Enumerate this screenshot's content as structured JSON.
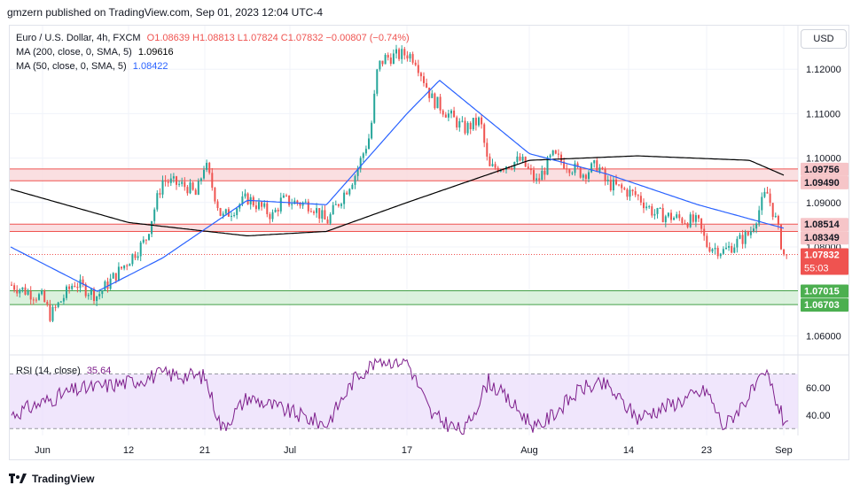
{
  "publisher_line": "gmzern published on TradingView.com, Sep 01, 2023 12:04 UTC-4",
  "currency_button": "USD",
  "footer_brand": "TradingView",
  "legend": {
    "main": {
      "label": "Euro / U.S. Dollar, 4h, FXCM",
      "values": "O1.08639  H1.08813  L1.07824  C1.07832  −0.00807 (−0.74%)"
    },
    "ma200": {
      "label": "MA (200, close, 0, SMA, 5)",
      "value": "1.09616"
    },
    "ma50": {
      "label": "MA (50, close, 0, SMA, 5)",
      "value": "1.08422"
    },
    "rsi": {
      "label": "RSI (14, close)",
      "value": "35.64"
    }
  },
  "colors": {
    "up": "#26a69a",
    "down": "#ef5350",
    "ma200": "#000000",
    "ma50": "#2962ff",
    "rsi": "#7e1f8c",
    "rsi_band": "#e9dbfb",
    "resistance_zone": "#f9d9dc",
    "support_zone": "#d5efd7",
    "grid": "#f0f3fa"
  },
  "chart_data": {
    "type": "candlestick",
    "symbol": "Euro / U.S. Dollar",
    "interval": "4h",
    "source": "FXCM",
    "x_tick_labels": [
      "Jun",
      "12",
      "21",
      "Jul",
      "17",
      "Aug",
      "14",
      "23",
      "Sep"
    ],
    "y_tick_labels": [
      "1.12000",
      "1.11000",
      "1.10000",
      "1.09000",
      "1.08000",
      "1.06000"
    ],
    "ylim": [
      1.0563,
      1.1298
    ],
    "series": [
      {
        "name": "Euro / U.S. Dollar",
        "style": "candles",
        "points": [
          {
            "date": "May 31",
            "close": 1.0715
          },
          {
            "date": "Jun 01",
            "close": 1.0685
          },
          {
            "date": "Jun 02",
            "close": 1.0645
          },
          {
            "date": "Jun 05",
            "close": 1.072
          },
          {
            "date": "Jun 08",
            "close": 1.069
          },
          {
            "date": "Jun 12",
            "close": 1.077
          },
          {
            "date": "Jun 14",
            "close": 1.0815
          },
          {
            "date": "Jun 16",
            "close": 1.095
          },
          {
            "date": "Jun 19",
            "close": 1.0935
          },
          {
            "date": "Jun 20",
            "close": 1.0915
          },
          {
            "date": "Jun 21",
            "close": 1.099
          },
          {
            "date": "Jun 23",
            "close": 1.0865
          },
          {
            "date": "Jun 26",
            "close": 1.091
          },
          {
            "date": "Jun 29",
            "close": 1.087
          },
          {
            "date": "Jun 30",
            "close": 1.0905
          },
          {
            "date": "Jul 04",
            "close": 1.0895
          },
          {
            "date": "Jul 06",
            "close": 1.0855
          },
          {
            "date": "Jul 10",
            "close": 1.0965
          },
          {
            "date": "Jul 12",
            "close": 1.1055
          },
          {
            "date": "Jul 13",
            "close": 1.1205
          },
          {
            "date": "Jul 14",
            "close": 1.1225
          },
          {
            "date": "Jul 17",
            "close": 1.1235
          },
          {
            "date": "Jul 18",
            "close": 1.1225
          },
          {
            "date": "Jul 20",
            "close": 1.1135
          },
          {
            "date": "Jul 24",
            "close": 1.1065
          },
          {
            "date": "Jul 26",
            "close": 1.1085
          },
          {
            "date": "Jul 27",
            "close": 1.0975
          },
          {
            "date": "Jul 31",
            "close": 1.0995
          },
          {
            "date": "Aug 02",
            "close": 1.0945
          },
          {
            "date": "Aug 04",
            "close": 1.1005
          },
          {
            "date": "Aug 08",
            "close": 1.0965
          },
          {
            "date": "Aug 10",
            "close": 1.0985
          },
          {
            "date": "Aug 11",
            "close": 1.0945
          },
          {
            "date": "Aug 15",
            "close": 1.0915
          },
          {
            "date": "Aug 17",
            "close": 1.0875
          },
          {
            "date": "Aug 22",
            "close": 1.0855
          },
          {
            "date": "Aug 23",
            "close": 1.0805
          },
          {
            "date": "Aug 25",
            "close": 1.079
          },
          {
            "date": "Aug 28",
            "close": 1.083
          },
          {
            "date": "Aug 30",
            "close": 1.0925
          },
          {
            "date": "Aug 31",
            "close": 1.0865
          },
          {
            "date": "Sep 01",
            "close": 1.07832
          }
        ]
      },
      {
        "name": "MA (200, close, 0, SMA, 5)",
        "style": "line",
        "points": [
          {
            "date": "May 31",
            "value": 1.093
          },
          {
            "date": "Jun 12",
            "value": 1.0855
          },
          {
            "date": "Jun 26",
            "value": 1.0825
          },
          {
            "date": "Jul 06",
            "value": 1.0835
          },
          {
            "date": "Jul 17",
            "value": 1.09
          },
          {
            "date": "Aug 01",
            "value": 1.0995
          },
          {
            "date": "Aug 15",
            "value": 1.1005
          },
          {
            "date": "Aug 28",
            "value": 1.0995
          },
          {
            "date": "Sep 01",
            "value": 1.09616
          }
        ]
      },
      {
        "name": "MA (50, close, 0, SMA, 5)",
        "style": "line",
        "points": [
          {
            "date": "May 31",
            "value": 1.08
          },
          {
            "date": "Jun 08",
            "value": 1.07
          },
          {
            "date": "Jun 16",
            "value": 1.0775
          },
          {
            "date": "Jun 26",
            "value": 1.0905
          },
          {
            "date": "Jul 06",
            "value": 1.0895
          },
          {
            "date": "Jul 17",
            "value": 1.11
          },
          {
            "date": "Jul 21",
            "value": 1.1175
          },
          {
            "date": "Aug 01",
            "value": 1.101
          },
          {
            "date": "Aug 11",
            "value": 1.0965
          },
          {
            "date": "Aug 22",
            "value": 1.0895
          },
          {
            "date": "Sep 01",
            "value": 1.08422
          }
        ]
      }
    ],
    "zones": [
      {
        "kind": "resistance",
        "from": 1.0949,
        "to": 1.09756
      },
      {
        "kind": "resistance",
        "from": 1.08349,
        "to": 1.08514
      },
      {
        "kind": "support",
        "from": 1.06703,
        "to": 1.07015
      }
    ],
    "price_labels": [
      {
        "value": 1.09756,
        "text": "1.09756"
      },
      {
        "value": 1.0949,
        "text": "1.09490"
      },
      {
        "value": 1.08514,
        "text": "1.08514"
      },
      {
        "value": 1.08349,
        "text": "1.08349"
      },
      {
        "value": 1.07832,
        "text": "1.07832",
        "sub": "55:03"
      },
      {
        "value": 1.07015,
        "text": "1.07015",
        "kind": "support"
      },
      {
        "value": 1.06703,
        "text": "1.06703",
        "kind": "support"
      }
    ],
    "last_price_line": 1.07832,
    "rsi": {
      "name": "RSI (14, close)",
      "y_tick_labels": [
        "60.00",
        "40.00"
      ],
      "ylim": [
        25,
        82
      ],
      "band": [
        30,
        70
      ],
      "last": 35.64,
      "points": [
        {
          "date": "May 31",
          "value": 40
        },
        {
          "date": "Jun 05",
          "value": 58
        },
        {
          "date": "Jun 12",
          "value": 64
        },
        {
          "date": "Jun 16",
          "value": 70
        },
        {
          "date": "Jun 21",
          "value": 68
        },
        {
          "date": "Jun 23",
          "value": 30
        },
        {
          "date": "Jun 26",
          "value": 53
        },
        {
          "date": "Jul 06",
          "value": 33
        },
        {
          "date": "Jul 10",
          "value": 68
        },
        {
          "date": "Jul 13",
          "value": 80
        },
        {
          "date": "Jul 17",
          "value": 80
        },
        {
          "date": "Jul 20",
          "value": 40
        },
        {
          "date": "Jul 24",
          "value": 27
        },
        {
          "date": "Jul 27",
          "value": 65
        },
        {
          "date": "Aug 02",
          "value": 30
        },
        {
          "date": "Aug 08",
          "value": 60
        },
        {
          "date": "Aug 11",
          "value": 62
        },
        {
          "date": "Aug 15",
          "value": 38
        },
        {
          "date": "Aug 23",
          "value": 58
        },
        {
          "date": "Aug 25",
          "value": 31
        },
        {
          "date": "Aug 30",
          "value": 70
        },
        {
          "date": "Sep 01",
          "value": 35.64
        }
      ]
    }
  }
}
